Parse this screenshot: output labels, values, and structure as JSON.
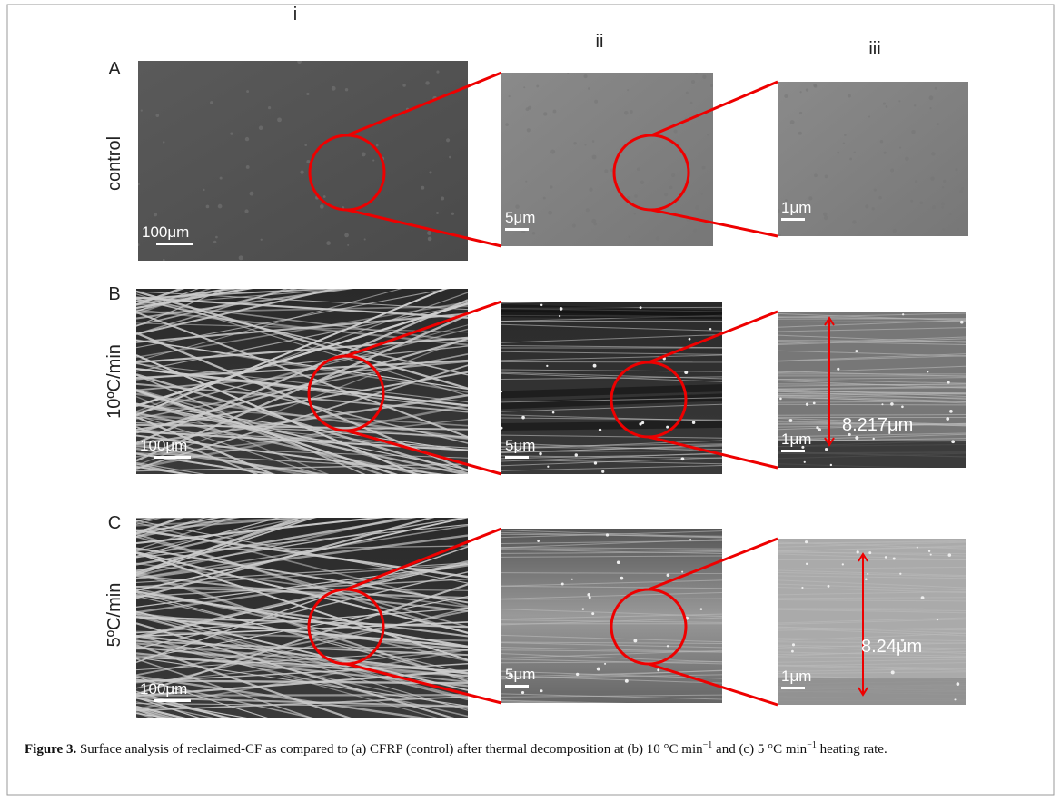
{
  "figure": {
    "columns": [
      "i",
      "ii",
      "iii"
    ],
    "rows": [
      {
        "letter": "A",
        "label": "control",
        "scale_bars": [
          "100μm",
          "5μm",
          "1μm"
        ]
      },
      {
        "letter": "B",
        "label": "10ºC/min",
        "scale_bars": [
          "100μm",
          "5μm",
          "1μm"
        ],
        "measurement": "8.217μm"
      },
      {
        "letter": "C",
        "label": "5ºC/min",
        "scale_bars": [
          "100μm",
          "5μm",
          "1μm"
        ],
        "measurement": "8.24μm"
      }
    ],
    "caption": {
      "label": "Figure 3.",
      "parts": [
        " Surface analysis of reclaimed-CF as compared to (a) CFRP (control) after thermal decomposition at (b) 10 °C min",
        "−1",
        " and (c) 5 °C min",
        "−1",
        " heating rate."
      ]
    }
  }
}
